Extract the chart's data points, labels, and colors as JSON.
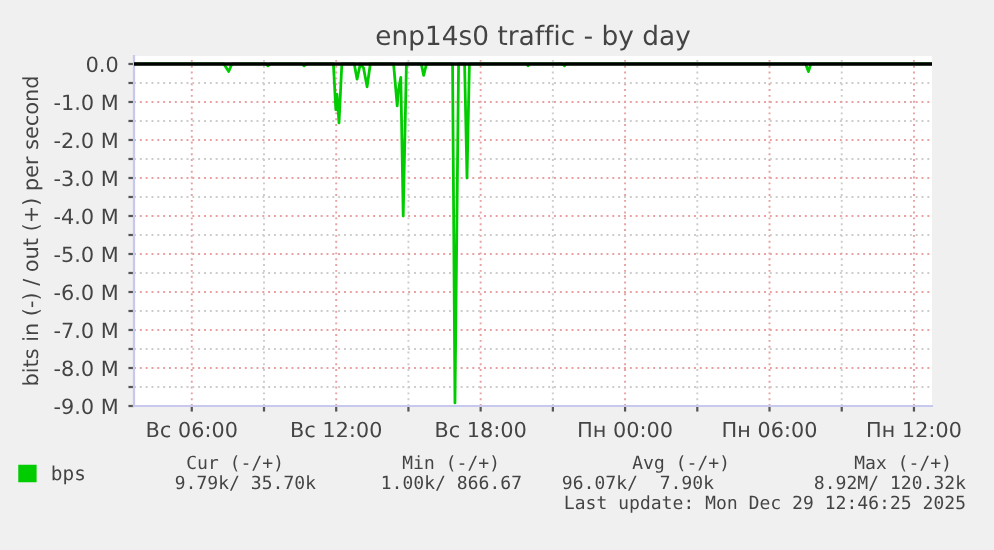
{
  "chart_data": {
    "type": "line",
    "title": "enp14s0 traffic - by day",
    "ylabel": "bits in (-) / out (+) per second",
    "x": [
      "2025-12-28T03:36",
      "2025-12-28T07:20",
      "2025-12-28T07:32",
      "2025-12-28T07:40",
      "2025-12-28T09:05",
      "2025-12-28T09:10",
      "2025-12-28T09:15",
      "2025-12-28T10:35",
      "2025-12-28T10:40",
      "2025-12-28T10:45",
      "2025-12-28T11:53",
      "2025-12-28T11:59",
      "2025-12-28T12:02",
      "2025-12-28T12:07",
      "2025-12-28T12:14",
      "2025-12-28T12:45",
      "2025-12-28T12:52",
      "2025-12-28T13:00",
      "2025-12-28T13:08",
      "2025-12-28T13:17",
      "2025-12-28T13:25",
      "2025-12-28T14:23",
      "2025-12-28T14:32",
      "2025-12-28T14:35",
      "2025-12-28T14:41",
      "2025-12-28T14:47",
      "2025-12-28T14:55",
      "2025-12-28T15:32",
      "2025-12-28T15:38",
      "2025-12-28T15:45",
      "2025-12-28T16:50",
      "2025-12-28T16:56",
      "2025-12-28T17:05",
      "2025-12-28T17:20",
      "2025-12-28T17:26",
      "2025-12-28T17:32",
      "2025-12-28T19:55",
      "2025-12-28T19:58",
      "2025-12-28T20:00",
      "2025-12-28T21:25",
      "2025-12-28T21:29",
      "2025-12-28T21:32",
      "2025-12-29T07:30",
      "2025-12-29T07:37",
      "2025-12-29T07:43",
      "2025-12-29T12:45"
    ],
    "series": [
      {
        "name": "bps",
        "color": "#00cc00",
        "values": [
          0,
          0,
          -200000,
          0,
          0,
          -50000,
          0,
          0,
          -50000,
          0,
          0,
          -1200000,
          -800000,
          -1550000,
          0,
          0,
          -400000,
          0,
          -100000,
          -600000,
          0,
          0,
          -1100000,
          -700000,
          -350000,
          -4000000,
          0,
          0,
          -300000,
          0,
          0,
          -8920000,
          0,
          0,
          -3000000,
          0,
          0,
          -50000,
          0,
          0,
          -50000,
          0,
          0,
          -200000,
          0,
          0
        ]
      }
    ],
    "xlim": [
      "2025-12-28T03:36",
      "2025-12-29T12:45"
    ],
    "xticks": [
      {
        "value": "2025-12-28T06:00",
        "label": "Вс 06:00"
      },
      {
        "value": "2025-12-28T09:00",
        "label": null
      },
      {
        "value": "2025-12-28T12:00",
        "label": "Вс 12:00"
      },
      {
        "value": "2025-12-28T15:00",
        "label": null
      },
      {
        "value": "2025-12-28T18:00",
        "label": "Вс 18:00"
      },
      {
        "value": "2025-12-28T21:00",
        "label": null
      },
      {
        "value": "2025-12-29T00:00",
        "label": "Пн 00:00"
      },
      {
        "value": "2025-12-29T03:00",
        "label": null
      },
      {
        "value": "2025-12-29T06:00",
        "label": "Пн 06:00"
      },
      {
        "value": "2025-12-29T09:00",
        "label": null
      },
      {
        "value": "2025-12-29T12:00",
        "label": "Пн 12:00"
      }
    ],
    "ylim": [
      -9000000,
      210000
    ],
    "yticks": [
      {
        "value": 0,
        "label": "0.0"
      },
      {
        "value": -500000,
        "label": null
      },
      {
        "value": -1000000,
        "label": "-1.0 M"
      },
      {
        "value": -1500000,
        "label": null
      },
      {
        "value": -2000000,
        "label": "-2.0 M"
      },
      {
        "value": -2500000,
        "label": null
      },
      {
        "value": -3000000,
        "label": "-3.0 M"
      },
      {
        "value": -3500000,
        "label": null
      },
      {
        "value": -4000000,
        "label": "-4.0 M"
      },
      {
        "value": -4500000,
        "label": null
      },
      {
        "value": -5000000,
        "label": "-5.0 M"
      },
      {
        "value": -5500000,
        "label": null
      },
      {
        "value": -6000000,
        "label": "-6.0 M"
      },
      {
        "value": -6500000,
        "label": null
      },
      {
        "value": -7000000,
        "label": "-7.0 M"
      },
      {
        "value": -7500000,
        "label": null
      },
      {
        "value": -8000000,
        "label": "-8.0 M"
      },
      {
        "value": -8500000,
        "label": null
      },
      {
        "value": -9000000,
        "label": "-9.0 M"
      }
    ],
    "ref_lines": [
      {
        "axis": "y",
        "value": 0,
        "color": "#000000"
      }
    ],
    "grid": true,
    "legend": "bottom",
    "marker": "none",
    "line_style": "solid",
    "annotations": [
      "Cur (-/+)",
      "Min (-/+)",
      "Avg (-/+)",
      "Max (-/+)",
      "9.79k/ 35.70k",
      "1.00k/ 866.67",
      "96.07k/  7.90k",
      "8.92M/ 120.32k",
      "Last update: Mon Dec 29 12:46:25 2025"
    ]
  }
}
